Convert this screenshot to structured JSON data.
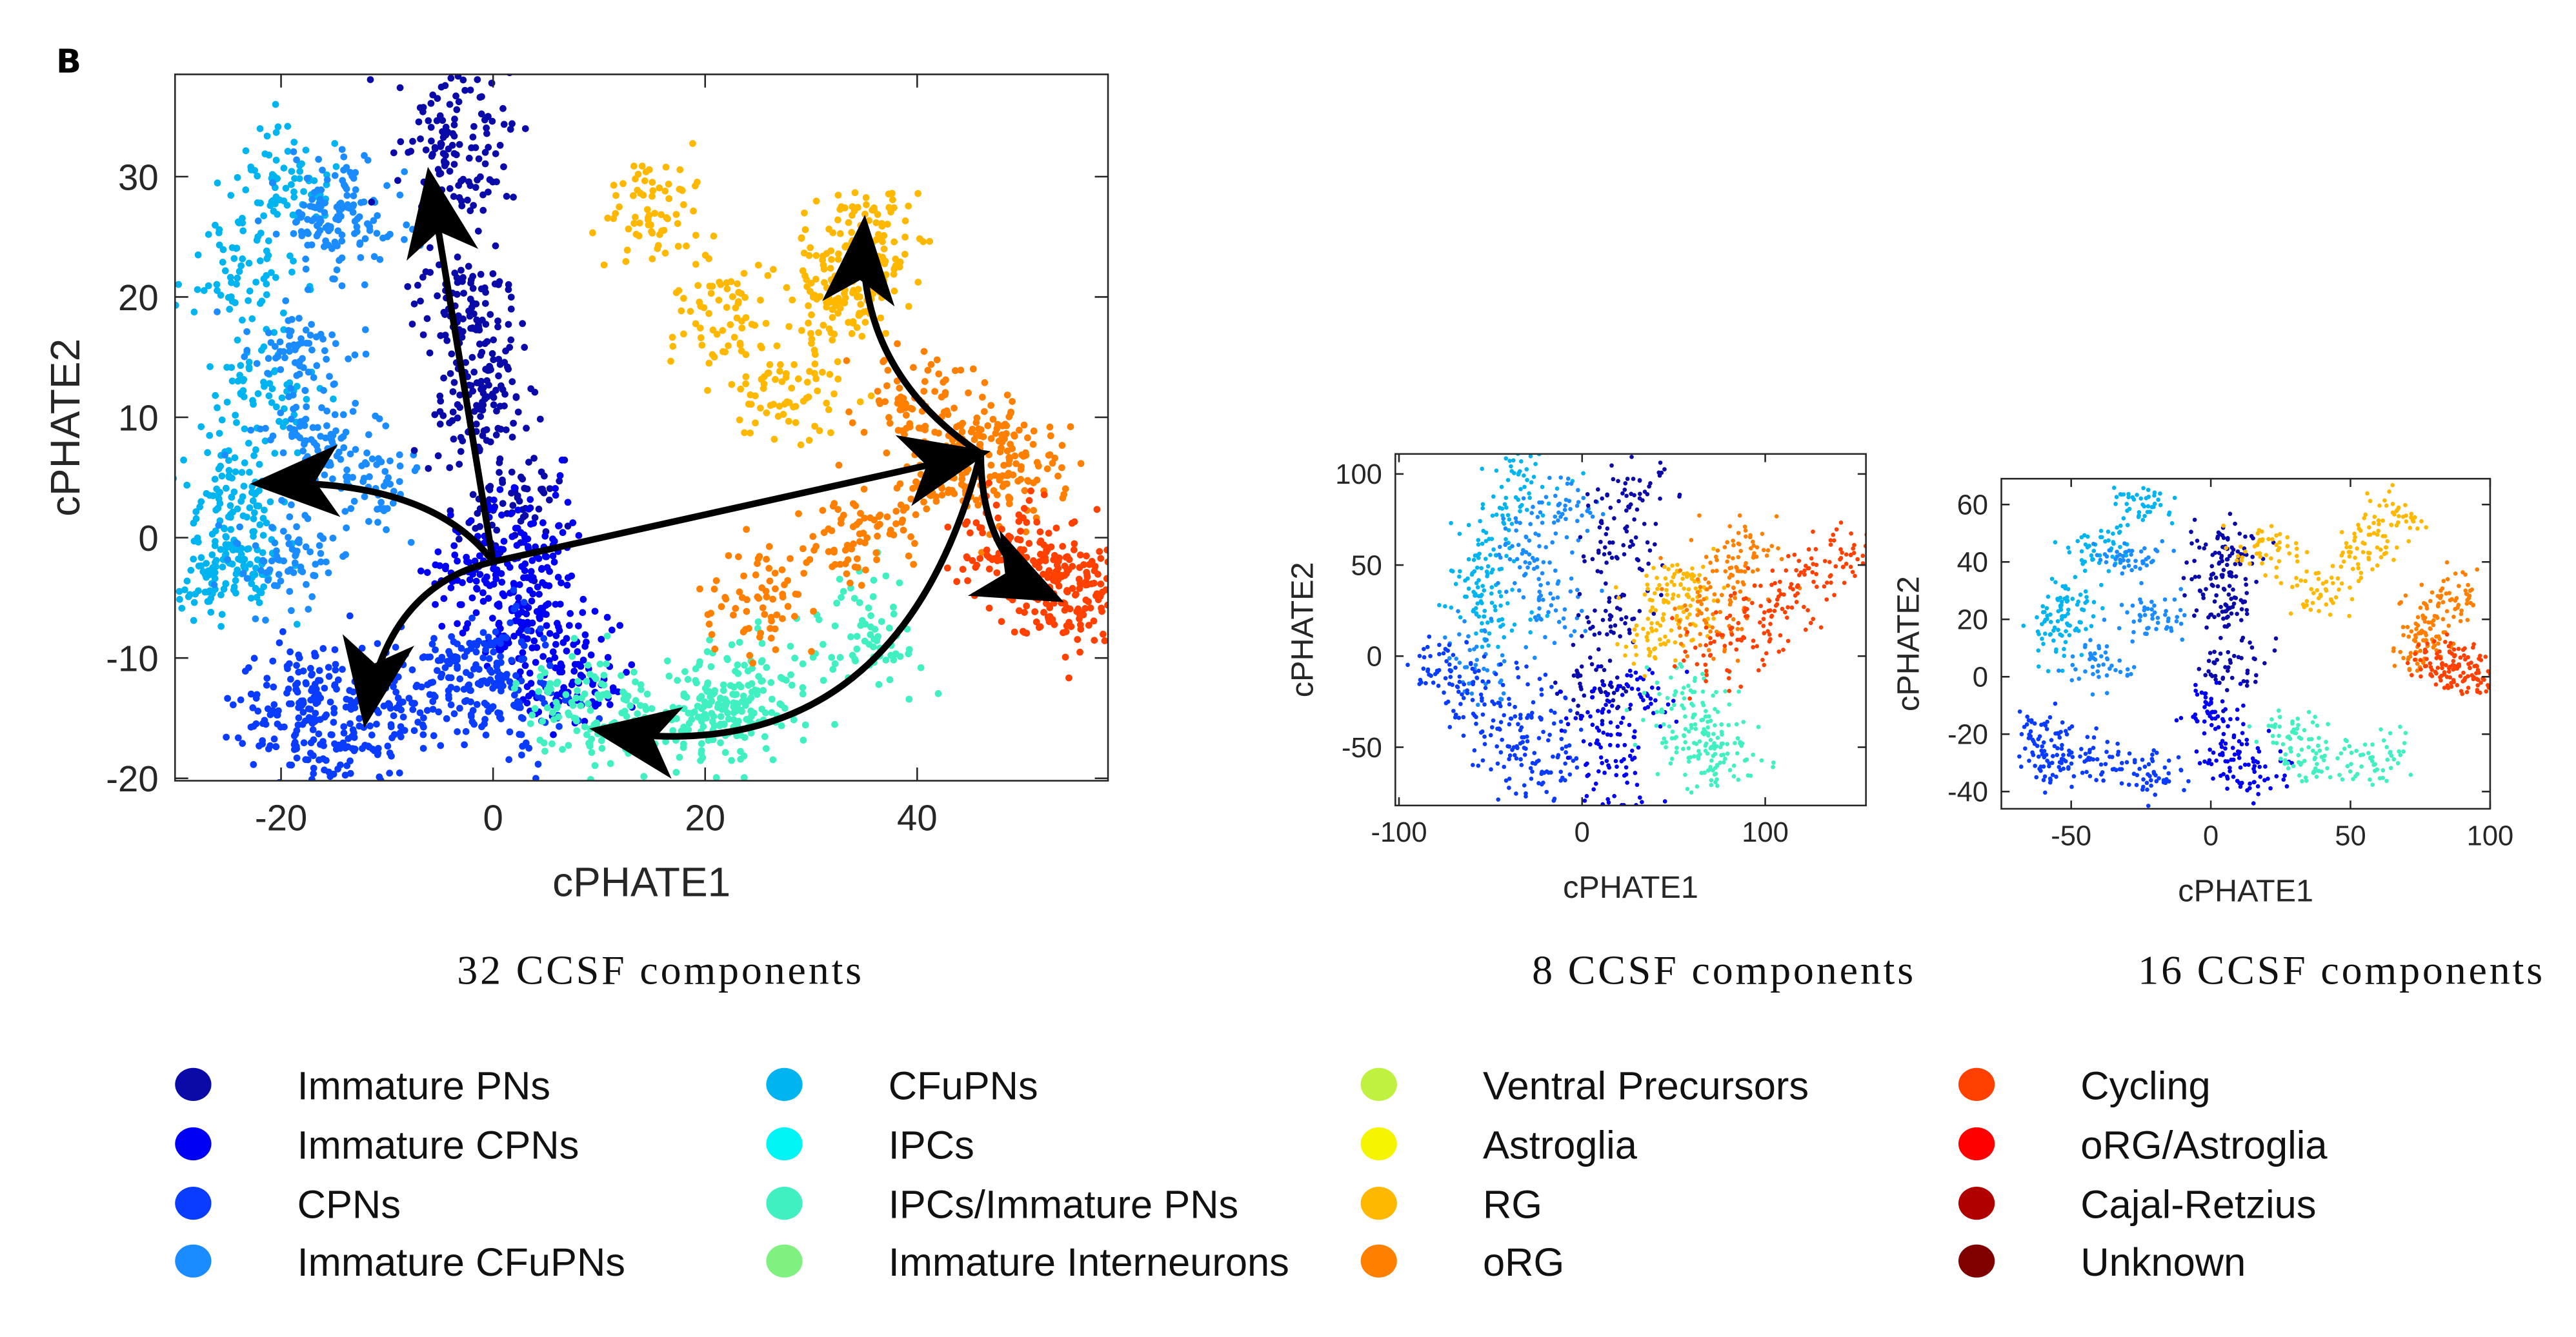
{
  "panel_label": "B",
  "legend": [
    {
      "label": "Immature PNs",
      "color": "#0a0aa8"
    },
    {
      "label": "Immature CPNs",
      "color": "#0000f5"
    },
    {
      "label": "CPNs",
      "color": "#0a3cff"
    },
    {
      "label": "Immature CFuPNs",
      "color": "#1a8cff"
    },
    {
      "label": "CFuPNs",
      "color": "#00b4f0"
    },
    {
      "label": "IPCs",
      "color": "#00f5f5"
    },
    {
      "label": "IPCs/Immature PNs",
      "color": "#40f0c0"
    },
    {
      "label": "Immature Interneurons",
      "color": "#80f080"
    },
    {
      "label": "Ventral Precursors",
      "color": "#c0f040"
    },
    {
      "label": "Astroglia",
      "color": "#f5f500"
    },
    {
      "label": "RG",
      "color": "#ffb800"
    },
    {
      "label": "oRG",
      "color": "#ff8000"
    },
    {
      "label": "Cycling",
      "color": "#ff4000"
    },
    {
      "label": "oRG/Astroglia",
      "color": "#ff0000"
    },
    {
      "label": "Cajal-Retzius",
      "color": "#b00000"
    },
    {
      "label": "Unknown",
      "color": "#800000"
    }
  ],
  "chart_data": [
    {
      "type": "scatter",
      "title": "32 CCSF components",
      "xlabel": "cPHATE1",
      "ylabel": "cPHATE2",
      "xlim": [
        -30,
        58
      ],
      "ylim": [
        -20.2,
        38.5
      ],
      "xticks": [
        -20,
        0,
        20,
        40
      ],
      "yticks": [
        -20,
        -10,
        0,
        10,
        20,
        30
      ],
      "grid": false,
      "clusters": [
        {
          "name": "CFuPNs",
          "points": [
            [
              -25,
              3
            ],
            [
              -26,
              -3
            ],
            [
              -24,
              22
            ],
            [
              -20,
              30
            ],
            [
              -22,
              12
            ],
            [
              -24,
              -1
            ]
          ]
        },
        {
          "name": "Immature CFuPNs",
          "points": [
            [
              -18,
              15
            ],
            [
              -15,
              25
            ],
            [
              -12,
              5
            ],
            [
              -20,
              -2
            ],
            [
              -13,
              28
            ],
            [
              -17,
              8
            ]
          ]
        },
        {
          "name": "Immature PNs",
          "points": [
            [
              -4,
              30
            ],
            [
              -3,
              20
            ],
            [
              -2,
              10
            ],
            [
              -4,
              35
            ],
            [
              2,
              3
            ],
            [
              -1,
              15
            ]
          ]
        },
        {
          "name": "Immature CPNs",
          "points": [
            [
              2,
              -5
            ],
            [
              5,
              -8
            ],
            [
              -2,
              -3
            ],
            [
              8,
              -12
            ],
            [
              3,
              0
            ]
          ]
        },
        {
          "name": "CPNs",
          "points": [
            [
              -18,
              -12
            ],
            [
              -10,
              -15
            ],
            [
              -5,
              -12
            ],
            [
              0,
              -10
            ],
            [
              -15,
              -18
            ],
            [
              -20,
              -15
            ],
            [
              2,
              -14
            ]
          ]
        },
        {
          "name": "IPCs/Immature PNs",
          "points": [
            [
              12,
              -15
            ],
            [
              20,
              -15
            ],
            [
              25,
              -13
            ],
            [
              8,
              -14
            ],
            [
              35,
              -8
            ],
            [
              22,
              -14
            ]
          ]
        },
        {
          "name": "RG",
          "points": [
            [
              33,
              20
            ],
            [
              36,
              25
            ],
            [
              28,
              12
            ],
            [
              15,
              27
            ],
            [
              22,
              18
            ],
            [
              34,
              22
            ]
          ]
        },
        {
          "name": "oRG",
          "points": [
            [
              47,
              7
            ],
            [
              42,
              5
            ],
            [
              35,
              0
            ],
            [
              25,
              -5
            ],
            [
              40,
              12
            ],
            [
              49,
              6
            ]
          ]
        },
        {
          "name": "Cycling",
          "points": [
            [
              52,
              -3
            ],
            [
              55,
              -5
            ],
            [
              48,
              -1
            ],
            [
              53,
              -4
            ]
          ]
        }
      ],
      "arrows": [
        {
          "from": [
            0,
            -2
          ],
          "via": [
            -3,
            14
          ],
          "to": [
            -6,
            30
          ]
        },
        {
          "from": [
            0,
            -2
          ],
          "via": [
            -6,
            5
          ],
          "to": [
            -22,
            4.5
          ]
        },
        {
          "from": [
            0,
            -2
          ],
          "via": [
            -10,
            -4
          ],
          "to": [
            -12,
            -15
          ]
        },
        {
          "from": [
            0,
            -2
          ],
          "via": [
            23,
            2.5
          ],
          "to": [
            46,
            7
          ]
        },
        {
          "from": [
            46,
            7
          ],
          "via": [
            34,
            14
          ],
          "to": [
            35,
            26
          ]
        },
        {
          "from": [
            46,
            7
          ],
          "via": [
            46,
            -2
          ],
          "to": [
            53,
            -5
          ]
        },
        {
          "from": [
            46,
            7
          ],
          "via": [
            38,
            -20
          ],
          "to": [
            10,
            -16
          ]
        }
      ]
    },
    {
      "type": "scatter",
      "title": "8 CCSF components",
      "xlabel": "cPHATE1",
      "ylabel": "cPHATE2",
      "xlim": [
        -102,
        155
      ],
      "ylim": [
        -82,
        111
      ],
      "xticks": [
        -100,
        0,
        100
      ],
      "yticks": [
        -50,
        0,
        50,
        100
      ],
      "grid": false,
      "clusters": [
        {
          "name": "CFuPNs",
          "points": [
            [
              -55,
              40
            ],
            [
              -45,
              70
            ],
            [
              -30,
              100
            ],
            [
              -50,
              20
            ]
          ]
        },
        {
          "name": "Immature CFuPNs",
          "points": [
            [
              -30,
              60
            ],
            [
              -20,
              30
            ],
            [
              -60,
              -5
            ],
            [
              -10,
              80
            ]
          ]
        },
        {
          "name": "Immature PNs",
          "points": [
            [
              25,
              90
            ],
            [
              20,
              60
            ],
            [
              15,
              20
            ],
            [
              10,
              -20
            ]
          ]
        },
        {
          "name": "CPNs",
          "points": [
            [
              -60,
              -20
            ],
            [
              -40,
              -50
            ],
            [
              -20,
              -60
            ],
            [
              -75,
              -5
            ],
            [
              -30,
              -30
            ]
          ]
        },
        {
          "name": "Immature CPNs",
          "points": [
            [
              10,
              -40
            ],
            [
              20,
              -70
            ],
            [
              30,
              -20
            ]
          ]
        },
        {
          "name": "IPCs/Immature PNs",
          "points": [
            [
              60,
              -40
            ],
            [
              70,
              -60
            ],
            [
              80,
              -50
            ],
            [
              55,
              -20
            ]
          ]
        },
        {
          "name": "RG",
          "points": [
            [
              50,
              30
            ],
            [
              60,
              40
            ],
            [
              40,
              10
            ]
          ]
        },
        {
          "name": "oRG",
          "points": [
            [
              80,
              40
            ],
            [
              90,
              55
            ],
            [
              70,
              20
            ]
          ]
        },
        {
          "name": "Cycling",
          "points": [
            [
              100,
              20
            ],
            [
              120,
              40
            ],
            [
              140,
              55
            ],
            [
              75,
              5
            ]
          ]
        }
      ]
    },
    {
      "type": "scatter",
      "title": "16 CCSF components",
      "xlabel": "cPHATE1",
      "ylabel": "cPHATE2",
      "xlim": [
        -75,
        100
      ],
      "ylim": [
        -46,
        69
      ],
      "xticks": [
        -50,
        0,
        50,
        100
      ],
      "yticks": [
        -40,
        -20,
        0,
        20,
        40,
        60
      ],
      "grid": false,
      "clusters": [
        {
          "name": "CFuPNs",
          "points": [
            [
              -55,
              15
            ],
            [
              -40,
              45
            ],
            [
              -25,
              60
            ],
            [
              -50,
              25
            ]
          ]
        },
        {
          "name": "Immature CFuPNs",
          "points": [
            [
              -30,
              40
            ],
            [
              -40,
              5
            ],
            [
              -20,
              20
            ]
          ]
        },
        {
          "name": "Immature PNs",
          "points": [
            [
              5,
              45
            ],
            [
              5,
              25
            ],
            [
              8,
              5
            ],
            [
              3,
              35
            ]
          ]
        },
        {
          "name": "CPNs",
          "points": [
            [
              -60,
              -20
            ],
            [
              -40,
              -30
            ],
            [
              -20,
              -35
            ],
            [
              -55,
              -30
            ]
          ]
        },
        {
          "name": "Immature CPNs",
          "points": [
            [
              5,
              -25
            ],
            [
              15,
              -35
            ],
            [
              0,
              -10
            ]
          ]
        },
        {
          "name": "IPCs/Immature PNs",
          "points": [
            [
              40,
              -30
            ],
            [
              60,
              -28
            ],
            [
              30,
              -20
            ]
          ]
        },
        {
          "name": "RG",
          "points": [
            [
              55,
              45
            ],
            [
              65,
              55
            ],
            [
              40,
              30
            ],
            [
              20,
              45
            ]
          ]
        },
        {
          "name": "oRG",
          "points": [
            [
              80,
              20
            ],
            [
              75,
              10
            ],
            [
              85,
              28
            ]
          ]
        },
        {
          "name": "Cycling",
          "points": [
            [
              90,
              3
            ],
            [
              95,
              0
            ],
            [
              82,
              6
            ]
          ]
        }
      ]
    }
  ]
}
